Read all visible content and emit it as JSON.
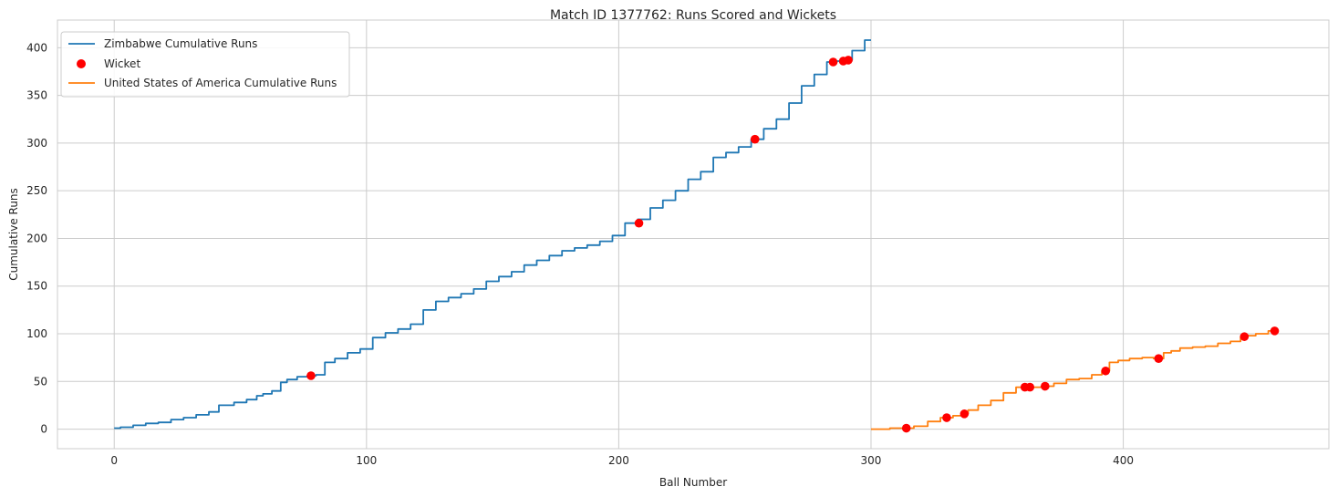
{
  "chart_data": {
    "type": "line",
    "title": "Match ID 1377762: Runs Scored and Wickets",
    "xlabel": "Ball Number",
    "ylabel": "Cumulative Runs",
    "xlim": [
      -22.5,
      481.5
    ],
    "ylim": [
      -20.5,
      429
    ],
    "xticks": [
      0,
      100,
      200,
      300,
      400
    ],
    "yticks": [
      0,
      50,
      100,
      150,
      200,
      250,
      300,
      350,
      400
    ],
    "grid": true,
    "legend_position": "top-left",
    "series": [
      {
        "name": "Zimbabwe Cumulative Runs",
        "kind": "line",
        "color": "#1f77b4",
        "x": [
          0,
          5,
          10,
          15,
          20,
          25,
          30,
          35,
          40,
          43,
          45,
          50,
          55,
          58,
          60,
          65,
          67,
          70,
          75,
          78,
          82,
          85,
          90,
          95,
          100,
          105,
          110,
          115,
          120,
          125,
          130,
          135,
          140,
          145,
          150,
          155,
          160,
          165,
          170,
          175,
          180,
          185,
          190,
          195,
          200,
          205,
          210,
          215,
          220,
          225,
          230,
          235,
          240,
          245,
          250,
          255,
          260,
          265,
          270,
          275,
          280,
          285,
          288,
          290,
          295,
          300
        ],
        "y": [
          1,
          2,
          4,
          6,
          7,
          10,
          12,
          15,
          18,
          25,
          25,
          28,
          31,
          35,
          37,
          40,
          49,
          52,
          55,
          56,
          57,
          70,
          74,
          80,
          84,
          96,
          101,
          105,
          110,
          125,
          134,
          138,
          142,
          147,
          155,
          160,
          165,
          172,
          177,
          182,
          187,
          190,
          193,
          197,
          203,
          216,
          220,
          232,
          240,
          250,
          262,
          270,
          285,
          290,
          296,
          304,
          315,
          325,
          342,
          360,
          372,
          385,
          386,
          387,
          397,
          408
        ]
      },
      {
        "name": "Wicket",
        "kind": "scatter",
        "color": "#ff0000",
        "x": [
          78,
          208,
          254,
          285,
          289,
          291,
          314,
          330,
          337,
          361,
          363,
          369,
          393,
          414,
          448,
          460
        ],
        "y": [
          56,
          216,
          304,
          385,
          386,
          387,
          1,
          12,
          16,
          44,
          44,
          45,
          61,
          74,
          97,
          103
        ]
      },
      {
        "name": "United States of America Cumulative Runs",
        "kind": "line",
        "color": "#ff7f0e",
        "x": [
          300,
          305,
          310,
          314,
          320,
          325,
          330,
          335,
          337,
          340,
          345,
          350,
          355,
          360,
          365,
          370,
          375,
          380,
          385,
          390,
          393,
          396,
          400,
          405,
          410,
          414,
          418,
          420,
          425,
          430,
          435,
          440,
          445,
          448,
          450,
          455,
          460
        ],
        "y": [
          0,
          0,
          1,
          1,
          3,
          8,
          12,
          14,
          16,
          20,
          25,
          30,
          38,
          44,
          44,
          45,
          48,
          52,
          53,
          57,
          61,
          70,
          72,
          74,
          75,
          74,
          80,
          82,
          85,
          86,
          87,
          90,
          92,
          97,
          98,
          100,
          103
        ]
      }
    ]
  }
}
